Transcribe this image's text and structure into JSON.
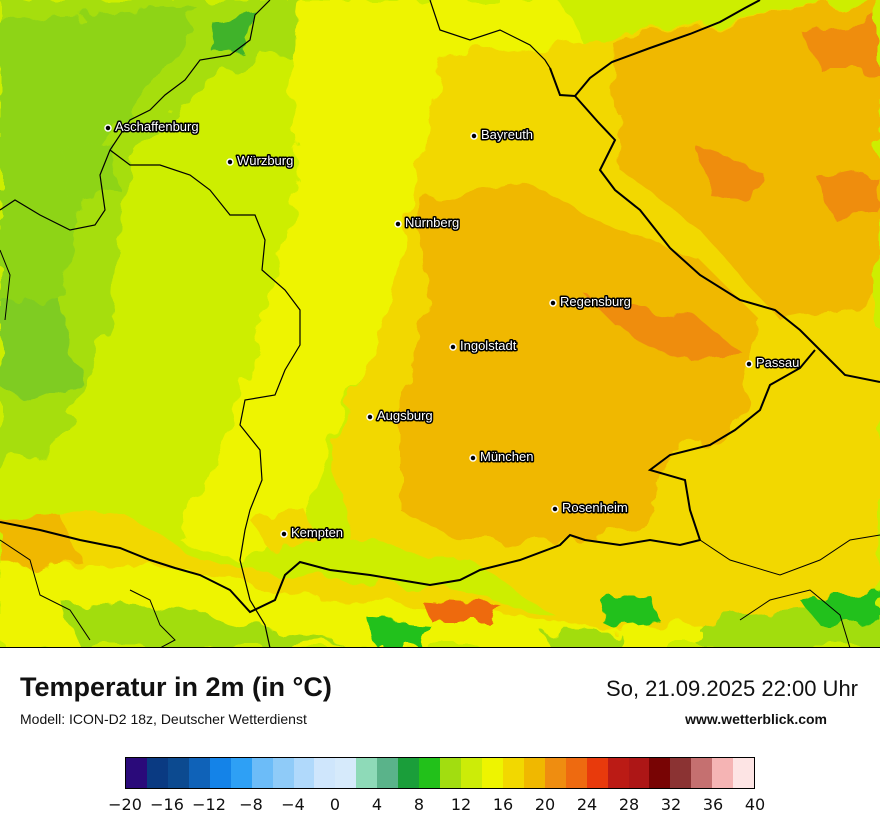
{
  "map": {
    "cities": [
      {
        "name": "Aschaffenburg"
      },
      {
        "name": "Würzburg"
      },
      {
        "name": "Bayreuth"
      },
      {
        "name": "Nürnberg"
      },
      {
        "name": "Regensburg"
      },
      {
        "name": "Ingolstadt"
      },
      {
        "name": "Passau"
      },
      {
        "name": "Augsburg"
      },
      {
        "name": "München"
      },
      {
        "name": "Rosenheim"
      },
      {
        "name": "Kempten"
      }
    ]
  },
  "footer": {
    "title": "Temperatur in 2m (in °C)",
    "model": "Modell: ICON-D2 18z, Deutscher Wetterdienst",
    "datetime": "So, 21.09.2025 22:00 Uhr",
    "site": "www.wetterblick.com"
  },
  "legend": {
    "colors": [
      "#2a0a7a",
      "#0a3a82",
      "#0c4a90",
      "#0f62b8",
      "#1483e8",
      "#2ea0f5",
      "#6cbcf8",
      "#8fcbf8",
      "#b0d9fb",
      "#cfe6fc",
      "#d6eafb",
      "#8edab8",
      "#5ab38a",
      "#1a9e3a",
      "#22c11a",
      "#a2dd10",
      "#ccec08",
      "#eef400",
      "#f2d800",
      "#f0b800",
      "#ef8d10",
      "#ee6a10",
      "#e83a0c",
      "#bb1b15",
      "#ad1616",
      "#780404",
      "#8b3333",
      "#c57070",
      "#f5b4b4",
      "#fde4e4"
    ],
    "ticks": [
      "−20",
      "−16",
      "−12",
      "−8",
      "−4",
      "0",
      "4",
      "8",
      "12",
      "16",
      "20",
      "24",
      "28",
      "32",
      "36",
      "40"
    ]
  }
}
